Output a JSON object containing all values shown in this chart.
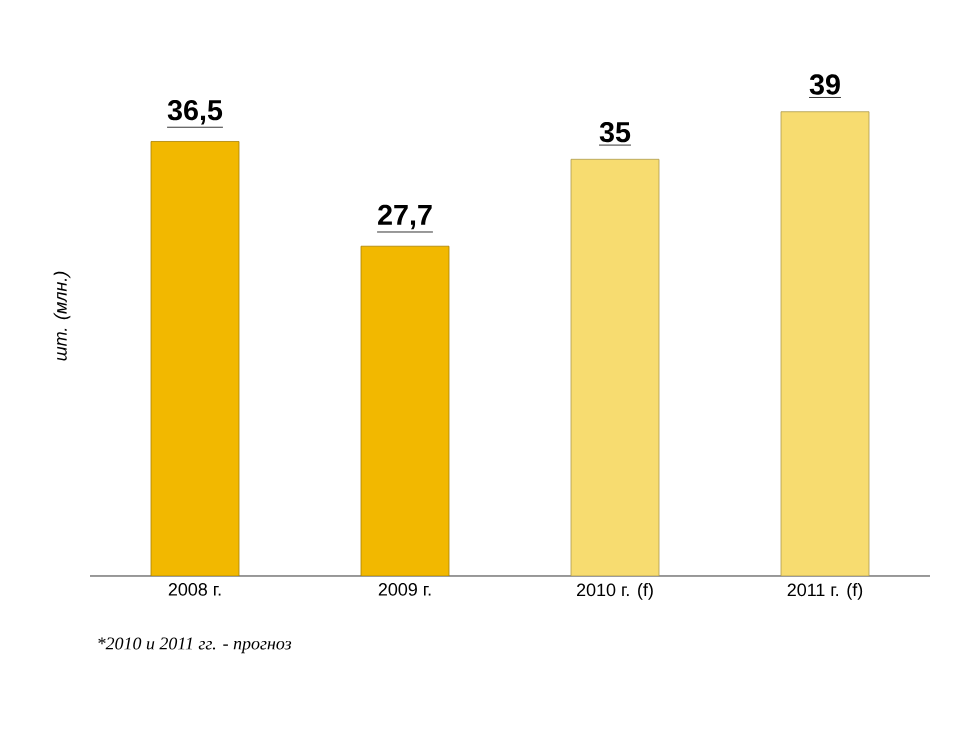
{
  "chart_data": {
    "type": "bar",
    "ylabel": "шт. (млн.)",
    "categories": [
      "2008 г.",
      "2009 г.",
      "2010 г. (f)",
      "2011 г. (f)"
    ],
    "values": [
      36.5,
      27.7,
      35,
      39
    ],
    "value_labels": [
      "36,5",
      "27,7",
      "35",
      "39"
    ],
    "colors": [
      "#f2b800",
      "#f2b800",
      "#f7dc70",
      "#f7dc70"
    ],
    "annotations": [
      "*2010 и 2011 гг. - прогноз"
    ]
  }
}
